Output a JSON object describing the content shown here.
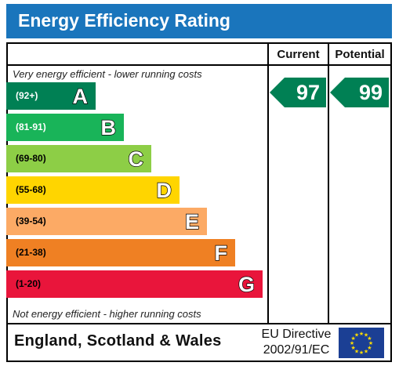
{
  "header": {
    "title": "Energy Efficiency Rating"
  },
  "columns": {
    "current": "Current",
    "potential": "Potential"
  },
  "notes": {
    "top": "Very energy efficient - lower running costs",
    "bottom": "Not energy efficient - higher running costs"
  },
  "chart_data": {
    "type": "bar",
    "title": "Energy Efficiency Rating",
    "bands": [
      {
        "range": "(92+)",
        "letter": "A",
        "color": "#008054",
        "range_color": "#ffffff"
      },
      {
        "range": "(81-91)",
        "letter": "B",
        "color": "#19b459",
        "range_color": "#ffffff"
      },
      {
        "range": "(69-80)",
        "letter": "C",
        "color": "#8dce46",
        "range_color": "#000000"
      },
      {
        "range": "(55-68)",
        "letter": "D",
        "color": "#ffd500",
        "range_color": "#000000"
      },
      {
        "range": "(39-54)",
        "letter": "E",
        "color": "#fcaa65",
        "range_color": "#000000"
      },
      {
        "range": "(21-38)",
        "letter": "F",
        "color": "#ef8023",
        "range_color": "#000000"
      },
      {
        "range": "(1-20)",
        "letter": "G",
        "color": "#e9153b",
        "range_color": "#000000"
      }
    ],
    "current": {
      "value": 97,
      "color": "#008054"
    },
    "potential": {
      "value": 99,
      "color": "#008054"
    }
  },
  "footer": {
    "region": "England, Scotland & Wales",
    "directive_line1": "EU Directive",
    "directive_line2": "2002/91/EC"
  },
  "flag": {
    "color": "#1b3f94",
    "star_color": "#ffdd00"
  }
}
